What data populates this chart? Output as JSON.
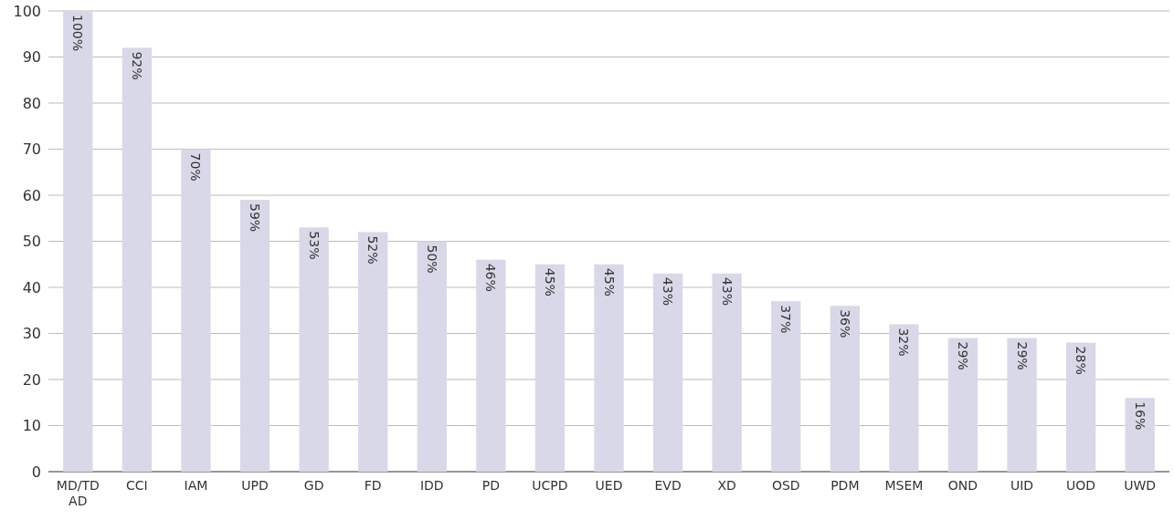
{
  "chart_data": {
    "type": "bar",
    "categories": [
      "MD/TD AD",
      "CCI",
      "IAM",
      "UPD",
      "GD",
      "FD",
      "IDD",
      "PD",
      "UCPD",
      "UED",
      "EVD",
      "XD",
      "OSD",
      "PDM",
      "MSEM",
      "OND",
      "UID",
      "UOD",
      "UWD"
    ],
    "values": [
      100,
      92,
      70,
      59,
      53,
      52,
      50,
      46,
      45,
      45,
      43,
      43,
      37,
      36,
      32,
      29,
      29,
      28,
      16
    ],
    "value_labels": [
      "100%",
      "92%",
      "70%",
      "59%",
      "53%",
      "52%",
      "50%",
      "46%",
      "45%",
      "45%",
      "43%",
      "43%",
      "37%",
      "36%",
      "32%",
      "29%",
      "29%",
      "28%",
      "16%"
    ],
    "color": "#d9d8e8",
    "ylim": [
      0,
      100
    ],
    "yticks": [
      0,
      10,
      20,
      30,
      40,
      50,
      60,
      70,
      80,
      90,
      100
    ],
    "grid": "y"
  }
}
